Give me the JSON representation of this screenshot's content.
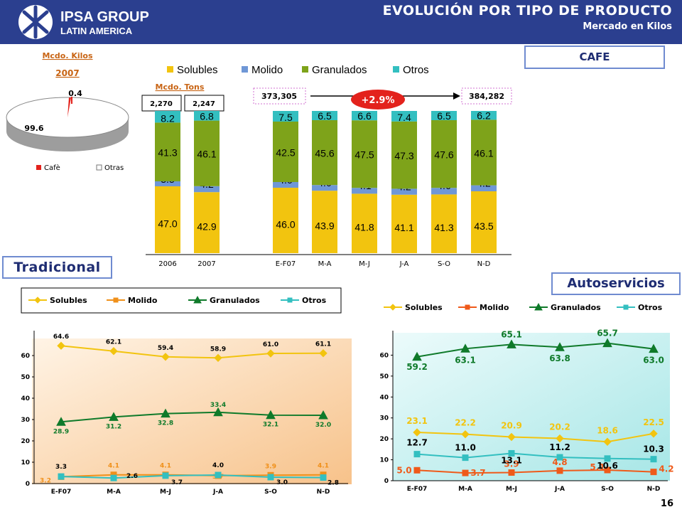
{
  "header": {
    "logo_line1": "IPSA GROUP",
    "logo_line2": "LATIN AMERICA",
    "title": "EVOLUCIÓN POR TIPO DE PRODUCTO",
    "subtitle": "Mercado en Kilos"
  },
  "cafe_label": "CAFE",
  "tradicional_label": "Tradicional",
  "autoservicios_label": "Autoservicios",
  "page_number": "16",
  "colors": {
    "header_bg": "#2b3f8f",
    "solubles": "#f2c40f",
    "molido": "#6f97d6",
    "granulados": "#7ea31a",
    "otros": "#33bfc0",
    "accent_red": "#e3221c"
  },
  "chart_data": [
    {
      "type": "pie",
      "id": "pie-2007",
      "title": "Mcdo. Kilos",
      "subtitle": "2007",
      "slices": [
        {
          "name": "Cafè",
          "value": 0.4,
          "label": "0.4",
          "color": "#e3221c"
        },
        {
          "name": "Otras",
          "value": 99.6,
          "label": "99.6",
          "color": "#ffffff"
        }
      ]
    },
    {
      "type": "bar",
      "id": "stacked-share",
      "stacked": true,
      "subtitle": "Mcdo. Tons",
      "categories": [
        "2006",
        "2007",
        "E-F07",
        "M-A",
        "M-J",
        "J-A",
        "S-O",
        "N-D"
      ],
      "series": [
        {
          "name": "Solubles",
          "color": "#f2c40f",
          "values": [
            47.0,
            42.9,
            46.0,
            43.9,
            41.8,
            41.1,
            41.3,
            43.5
          ],
          "labels": [
            "47.0",
            "42.9",
            "46.0",
            "43.9",
            "41.8",
            "41.1",
            "41.3",
            "43.5"
          ]
        },
        {
          "name": "Molido",
          "color": "#6f97d6",
          "values": [
            3.5,
            4.2,
            4.0,
            4.0,
            4.1,
            4.2,
            4.6,
            4.2
          ],
          "labels": [
            "3.5",
            "4.2",
            "4.0",
            "4.0",
            "4.1",
            "4.2",
            "4.6",
            "4.2"
          ]
        },
        {
          "name": "Granulados",
          "color": "#7ea31a",
          "values": [
            41.3,
            46.1,
            42.5,
            45.6,
            47.5,
            47.3,
            47.6,
            46.1
          ],
          "labels": [
            "41.3",
            "46.1",
            "42.5",
            "45.6",
            "47.5",
            "47.3",
            "47.6",
            "46.1"
          ]
        },
        {
          "name": "Otros",
          "color": "#33bfc0",
          "values": [
            8.2,
            6.8,
            7.5,
            6.5,
            6.6,
            7.4,
            6.5,
            6.2
          ],
          "labels": [
            "8.2",
            "6.8",
            "7.5",
            "6.5",
            "6.6",
            "7.4",
            "6.5",
            "6.2"
          ]
        }
      ],
      "ylim": [
        0,
        100
      ],
      "tons_2006": "2,270",
      "tons_2007": "2,247",
      "total_ef07": "373,305",
      "total_nd": "384,282",
      "growth": "+2.9%",
      "legend_position": "top"
    },
    {
      "type": "line",
      "id": "tradicional",
      "categories": [
        "E-F07",
        "M-A",
        "M-J",
        "J-A",
        "S-O",
        "N-D"
      ],
      "ylim": [
        0,
        70
      ],
      "yticks": [
        "0",
        "10",
        "20",
        "30",
        "40",
        "50",
        "60"
      ],
      "series": [
        {
          "name": "Solubles",
          "color": "#f2c40f",
          "marker": "diamond",
          "values": [
            64.6,
            62.1,
            59.4,
            58.9,
            61.0,
            61.1
          ],
          "labels": [
            "64.6",
            "62.1",
            "59.4",
            "58.9",
            "61.0",
            "61.1"
          ]
        },
        {
          "name": "Molido",
          "color": "#f0901a",
          "marker": "square",
          "values": [
            3.2,
            4.1,
            4.1,
            3.7,
            3.9,
            4.1
          ],
          "labels": [
            "3.2",
            "4.1",
            "4.1",
            "3.7",
            "3.9",
            "4.1"
          ]
        },
        {
          "name": "Granulados",
          "color": "#0f7a2a",
          "marker": "triangle",
          "values": [
            28.9,
            31.2,
            32.8,
            33.4,
            32.1,
            32.0
          ],
          "labels": [
            "28.9",
            "31.2",
            "32.8",
            "33.4",
            "32.1",
            "32.0"
          ]
        },
        {
          "name": "Otros",
          "color": "#33bfc0",
          "marker": "square",
          "values": [
            3.3,
            2.6,
            3.7,
            4.0,
            3.0,
            2.8
          ],
          "labels": [
            "3.3",
            "2.6",
            "3.7",
            "4.0",
            "3.0",
            "2.8"
          ]
        }
      ],
      "legend_position": "top"
    },
    {
      "type": "line",
      "id": "autoservicios",
      "categories": [
        "E-F07",
        "M-A",
        "M-J",
        "J-A",
        "S-O",
        "N-D"
      ],
      "ylim": [
        0,
        70
      ],
      "yticks": [
        "0",
        "10",
        "20",
        "30",
        "40",
        "50",
        "60"
      ],
      "series": [
        {
          "name": "Solubles",
          "color": "#f2c40f",
          "marker": "diamond",
          "values": [
            23.1,
            22.2,
            20.9,
            20.2,
            18.6,
            22.5
          ],
          "labels": [
            "23.1",
            "22.2",
            "20.9",
            "20.2",
            "18.6",
            "22.5"
          ]
        },
        {
          "name": "Molido",
          "color": "#ef5a1a",
          "marker": "square",
          "values": [
            5.0,
            3.7,
            3.9,
            4.8,
            5.1,
            4.2
          ],
          "labels": [
            "5.0",
            "3.7",
            "3.9",
            "4.8",
            "5.1",
            "4.2"
          ]
        },
        {
          "name": "Granulados",
          "color": "#0f7a2a",
          "marker": "triangle",
          "values": [
            59.2,
            63.1,
            65.1,
            63.8,
            65.7,
            63.0
          ],
          "labels": [
            "59.2",
            "63.1",
            "65.1",
            "63.8",
            "65.7",
            "63.0"
          ]
        },
        {
          "name": "Otros",
          "color": "#33bfc0",
          "marker": "square",
          "values": [
            12.7,
            11.0,
            13.1,
            11.2,
            10.6,
            10.3
          ],
          "labels": [
            "12.7",
            "11.0",
            "13.1",
            "11.2",
            "10.6",
            "10.3"
          ]
        }
      ],
      "legend_position": "top"
    }
  ]
}
